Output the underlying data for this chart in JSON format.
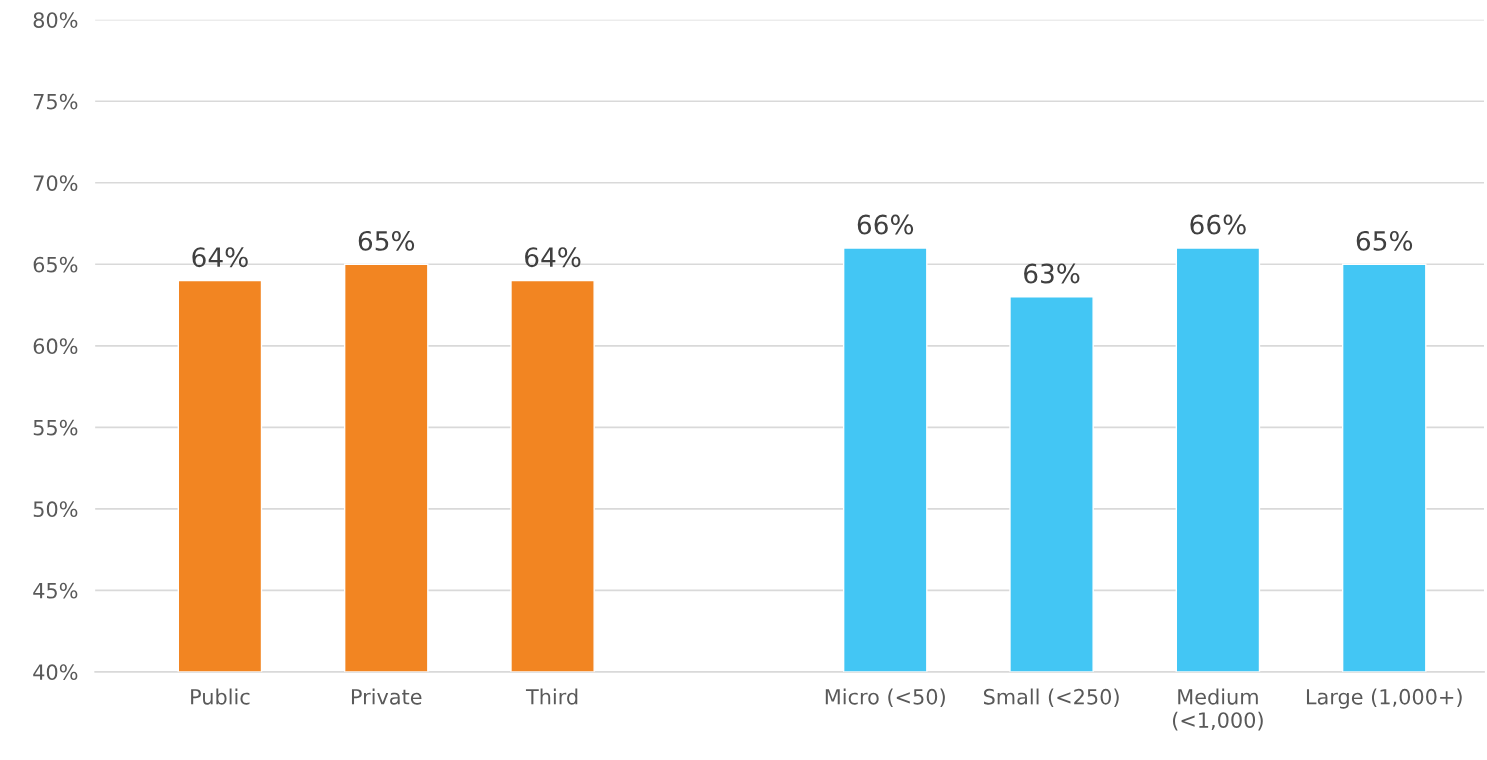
{
  "chart_data": {
    "type": "bar",
    "categories": [
      "Public",
      "Private",
      "Third",
      null,
      "Micro (<50)",
      "Small (<250)",
      "Medium\n(<1,000)",
      "Large (1,000+)"
    ],
    "values": [
      64,
      65,
      64,
      null,
      66,
      63,
      66,
      65
    ],
    "colors": [
      "#f28522",
      "#f28522",
      "#f28522",
      "#f28522",
      "#43c6f4",
      "#43c6f4",
      "#43c6f4",
      "#43c6f4"
    ],
    "value_labels": [
      "64%",
      "65%",
      "64%",
      null,
      "66%",
      "63%",
      "66%",
      "65%"
    ],
    "ylim": [
      40,
      80
    ],
    "yticks": [
      {
        "value": 40,
        "label": "40%"
      },
      {
        "value": 45,
        "label": "45%"
      },
      {
        "value": 50,
        "label": "50%"
      },
      {
        "value": 55,
        "label": "55%"
      },
      {
        "value": 60,
        "label": "60%"
      },
      {
        "value": 65,
        "label": "65%"
      },
      {
        "value": 70,
        "label": "70%"
      },
      {
        "value": 75,
        "label": "75%"
      },
      {
        "value": 80,
        "label": "80%"
      }
    ],
    "grid": "y"
  }
}
